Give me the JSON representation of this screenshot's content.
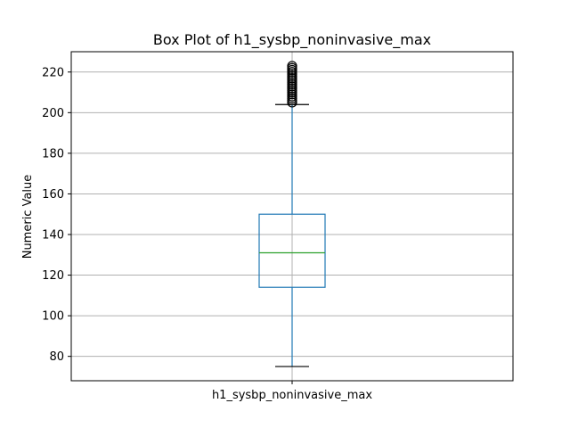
{
  "chart_data": {
    "type": "box",
    "title": "Box Plot of h1_sysbp_noninvasive_max",
    "xlabel": "",
    "ylabel": "Numeric Value",
    "categories": [
      "h1_sysbp_noninvasive_max"
    ],
    "ylim": [
      68,
      230
    ],
    "yticks": [
      80,
      100,
      120,
      140,
      160,
      180,
      200,
      220
    ],
    "grid": true,
    "boxes": [
      {
        "name": "h1_sysbp_noninvasive_max",
        "whisker_low": 75,
        "q1": 114,
        "median": 131,
        "q3": 150,
        "whisker_high": 204,
        "outliers": [
          205,
          206,
          207,
          208,
          209,
          210,
          211,
          212,
          213,
          214,
          215,
          216,
          217,
          218,
          219,
          220,
          221,
          222,
          223
        ]
      }
    ]
  },
  "colors": {
    "box": "#1f77b4",
    "median": "#2ca02c",
    "grid": "#b0b0b0",
    "outlier": "#000000"
  }
}
